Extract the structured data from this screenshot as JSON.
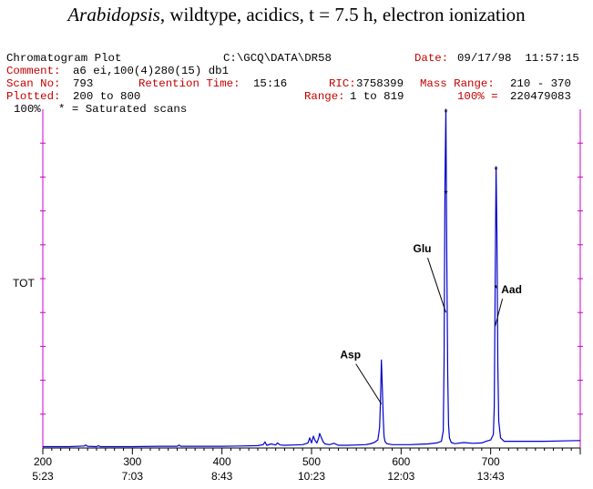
{
  "title": {
    "species": "Arabidopsis",
    "rest": ", wildtype, acidics, t = 7.5 h, electron ionization"
  },
  "header": {
    "plot_name": "Chromatogram Plot",
    "path": "C:\\GCQ\\DATA\\DR58",
    "date_label": "Date:",
    "date_value": "09/17/98  11:57:15",
    "comment_label": "Comment:",
    "comment_value": "a6 ei,100(4)280(15) db1",
    "scan_label": "Scan No:",
    "scan_value": "793",
    "rt_label": "Retention Time:",
    "rt_value": "15:16",
    "ric_label": "RIC:",
    "ric_value": "3758399",
    "mass_label": "Mass Range:",
    "mass_value": "210 - 370",
    "plotted_label": "Plotted:",
    "plotted_value": "200 to 800",
    "range_label": "Range:",
    "range_value": "1 to 819",
    "pct_label": "100% =",
    "pct_value": "220479083",
    "top_left": "100%",
    "saturated_note": "* = Saturated scans"
  },
  "colors": {
    "trace": "#0000cc",
    "axis_frame": "#cc00cc",
    "red_text": "#c40000"
  },
  "chart_data": {
    "type": "line",
    "title": "Arabidopsis, wildtype, acidics, t = 7.5 h, electron ionization",
    "ylabel": "TOT",
    "y_top_label": "100%",
    "xlim": [
      200,
      800
    ],
    "ylim": [
      0,
      100
    ],
    "x_ticks": [
      {
        "scan": 200,
        "time": "5:23"
      },
      {
        "scan": 300,
        "time": "7:03"
      },
      {
        "scan": 400,
        "time": "8:43"
      },
      {
        "scan": 500,
        "time": "10:23"
      },
      {
        "scan": 600,
        "time": "12:03"
      },
      {
        "scan": 700,
        "time": "13:43"
      }
    ],
    "series": [
      {
        "x": [
          200,
          230,
          246,
          248,
          250,
          260,
          262,
          264,
          290,
          300,
          330,
          350,
          352,
          354,
          400,
          420,
          440,
          446,
          448,
          450,
          455,
          460,
          462,
          465,
          470,
          480,
          490,
          496,
          498,
          500,
          502,
          504,
          506,
          508,
          509,
          511,
          513,
          515,
          520,
          525,
          530,
          540,
          550,
          560,
          565,
          570,
          574,
          576,
          577,
          578,
          579,
          580,
          581,
          582,
          584,
          590,
          600,
          610,
          620,
          630,
          640,
          645,
          647,
          648,
          649,
          650,
          651,
          652,
          653,
          654,
          656,
          660,
          670,
          680,
          690,
          695,
          700,
          703,
          704,
          705,
          706,
          707,
          708,
          709,
          711,
          715,
          720,
          740,
          760,
          780,
          800
        ],
        "y": [
          0.4,
          0.4,
          0.6,
          0.9,
          0.5,
          0.4,
          0.7,
          0.4,
          0.4,
          0.4,
          0.5,
          0.5,
          0.9,
          0.5,
          0.5,
          0.6,
          0.7,
          1.0,
          1.8,
          0.8,
          1.2,
          0.9,
          1.5,
          0.9,
          0.8,
          0.9,
          1.0,
          1.5,
          3.0,
          1.5,
          3.5,
          2.2,
          1.5,
          3.0,
          4.3,
          3.0,
          1.8,
          1.2,
          1.0,
          1.4,
          0.8,
          0.8,
          0.9,
          1.0,
          1.2,
          1.6,
          2.4,
          6.0,
          14.0,
          26.0,
          18.0,
          9.0,
          3.5,
          2.0,
          1.3,
          1.0,
          1.0,
          1.0,
          1.1,
          1.2,
          1.5,
          2.0,
          5.0,
          25.0,
          78.0,
          100.0,
          56.0,
          22.0,
          7.0,
          3.0,
          1.6,
          1.3,
          1.6,
          1.4,
          1.5,
          2.0,
          2.4,
          4.0,
          12.0,
          48.0,
          83.0,
          64.0,
          25.0,
          8.0,
          3.0,
          2.0,
          2.0,
          2.0,
          2.0,
          2.1,
          2.2
        ]
      }
    ],
    "saturated_marks": [
      {
        "x": 650,
        "y": 100
      },
      {
        "x": 650,
        "y": 76
      },
      {
        "x": 706,
        "y": 83
      },
      {
        "x": 706,
        "y": 48
      }
    ],
    "annotations": [
      {
        "text": "Asp",
        "target_x": 578,
        "target_y": 13
      },
      {
        "text": "Glu",
        "target_x": 650,
        "target_y": 40
      },
      {
        "text": "Aad",
        "target_x": 705,
        "target_y": 36
      }
    ]
  }
}
